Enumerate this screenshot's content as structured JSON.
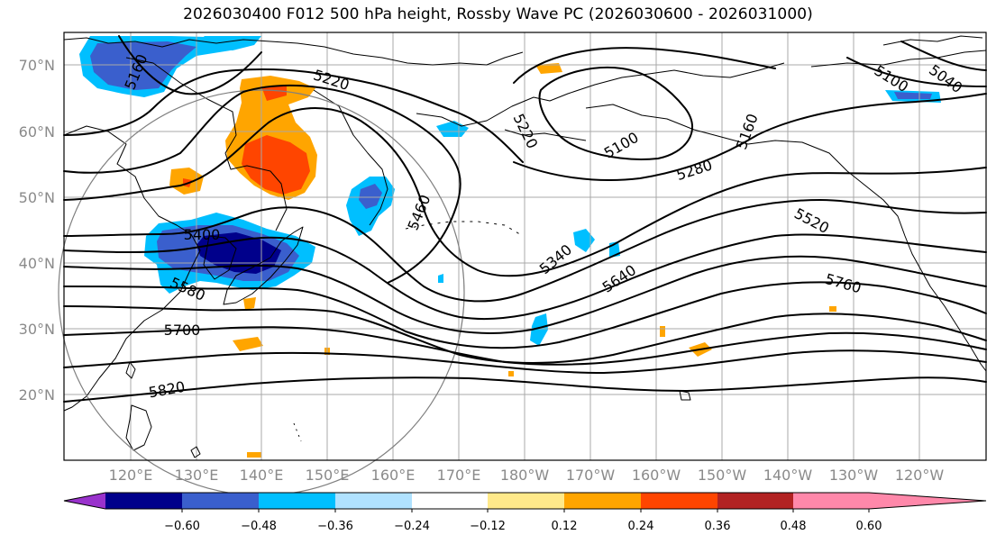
{
  "title": "2026030400 F012 500 hPa height, Rossby Wave PC (2026030600 - 2026031000)",
  "map": {
    "lat_labels": [
      "70°N",
      "60°N",
      "50°N",
      "40°N",
      "30°N",
      "20°N"
    ],
    "lon_labels": [
      "120°E",
      "130°E",
      "140°E",
      "150°E",
      "160°E",
      "170°E",
      "180°W",
      "170°W",
      "160°W",
      "150°W",
      "140°W",
      "130°W",
      "120°W"
    ],
    "contour_labels": [
      "5160",
      "5220",
      "5220",
      "5100",
      "5160",
      "5280",
      "5100",
      "5040",
      "5400",
      "5460",
      "5340",
      "5520",
      "5580",
      "5640",
      "5760",
      "5700",
      "5820"
    ]
  },
  "colorbar": {
    "ticks": [
      "−0.60",
      "−0.48",
      "−0.36",
      "−0.24",
      "−0.12",
      "0.12",
      "0.24",
      "0.36",
      "0.48",
      "0.60"
    ],
    "colors": [
      "#9932cc",
      "#00008b",
      "#3a5fcd",
      "#00bfff",
      "#b0e2ff",
      "#ffffff",
      "#ffe98a",
      "#ffa500",
      "#ff4500",
      "#b22222",
      "#ff88aa"
    ]
  },
  "colors": {
    "frame": "#000000",
    "grid": "#a8a8a8",
    "coast": "#000000",
    "contour": "#000000",
    "circle": "#7f7f7f"
  }
}
